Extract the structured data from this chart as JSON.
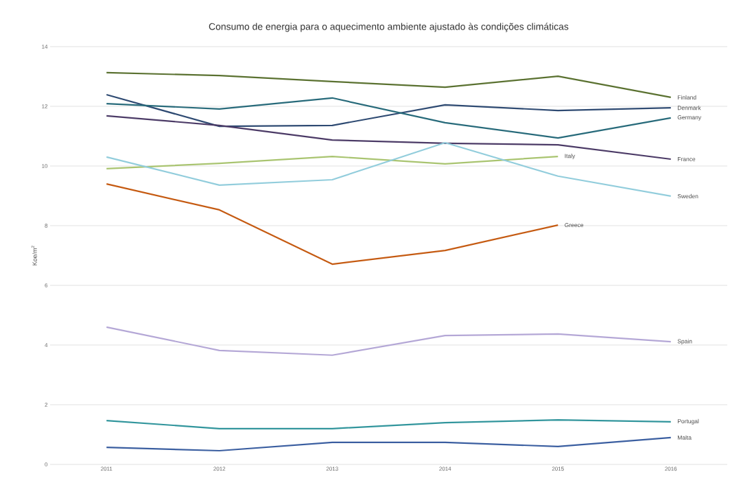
{
  "chart_data": {
    "type": "line",
    "title": "Consumo de energia para o aquecimento ambiente ajustado às condições climáticas",
    "ylabel": "Koe/m$^{2}$",
    "categories": [
      "2011",
      "2012",
      "2013",
      "2014",
      "2015",
      "2016"
    ],
    "ylim": [
      0,
      14
    ],
    "yticks": [
      0,
      2,
      4,
      6,
      8,
      10,
      12,
      14
    ],
    "grid": "y",
    "marker": "none",
    "series": [
      {
        "name": "Finland",
        "color": "#5a7130",
        "values": [
          13.13,
          13.03,
          12.83,
          12.64,
          13.01,
          12.3
        ]
      },
      {
        "name": "Denmark",
        "color": "#2e4a72",
        "values": [
          12.39,
          11.33,
          11.36,
          12.05,
          11.86,
          11.95
        ]
      },
      {
        "name": "Germany",
        "color": "#276a7a",
        "values": [
          12.09,
          11.91,
          12.28,
          11.45,
          10.94,
          11.61
        ]
      },
      {
        "name": "France",
        "color": "#4b3a66",
        "values": [
          11.68,
          11.36,
          10.87,
          10.76,
          10.71,
          10.23
        ]
      },
      {
        "name": "Italy",
        "color": "#a9c470",
        "values": [
          9.91,
          10.09,
          10.32,
          10.07,
          10.32,
          null
        ]
      },
      {
        "name": "Sweden",
        "color": "#92cddc",
        "values": [
          10.3,
          9.36,
          9.54,
          10.78,
          9.66,
          8.99
        ]
      },
      {
        "name": "Greece",
        "color": "#c55a11",
        "values": [
          9.4,
          8.53,
          6.71,
          7.17,
          8.02,
          null
        ]
      },
      {
        "name": "Spain",
        "color": "#b4a7d6",
        "values": [
          4.6,
          3.82,
          3.66,
          4.32,
          4.37,
          4.11
        ]
      },
      {
        "name": "Portugal",
        "color": "#31959c",
        "values": [
          1.47,
          1.2,
          1.2,
          1.4,
          1.49,
          1.43
        ]
      },
      {
        "name": "Malta",
        "color": "#3a5ea0",
        "values": [
          0.57,
          0.46,
          0.74,
          0.74,
          0.6,
          0.9
        ]
      }
    ]
  }
}
